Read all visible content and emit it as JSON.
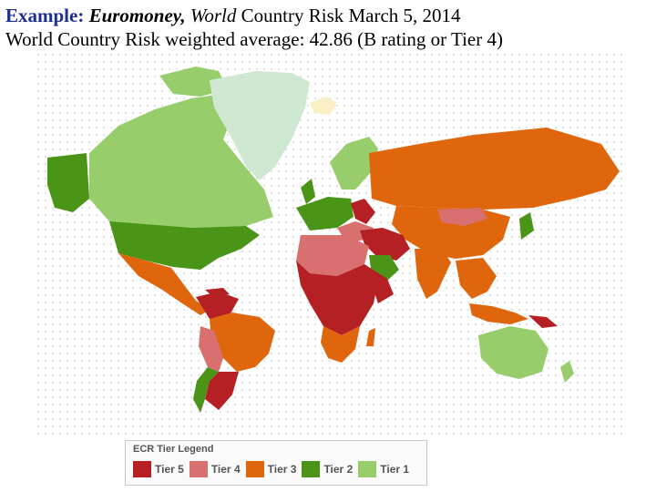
{
  "caption": {
    "lead": "Example:",
    "source": "Euromoney,",
    "world_italic": "World",
    "title_rest": "Country Risk March 5, 2014",
    "subtitle": "World Country Risk weighted average: 42.86 (B rating or Tier 4)"
  },
  "legend": {
    "title": "ECR Tier Legend",
    "items": [
      {
        "label": "Tier 5",
        "color": "#b52025"
      },
      {
        "label": "Tier 4",
        "color": "#d97070"
      },
      {
        "label": "Tier 3",
        "color": "#e0660e"
      },
      {
        "label": "Tier 2",
        "color": "#4a9418"
      },
      {
        "label": "Tier 1",
        "color": "#97cd6a"
      }
    ]
  },
  "colors": {
    "tier5": "#b52025",
    "tier4": "#d97070",
    "tier3": "#e0660e",
    "tier2": "#4a9418",
    "tier1": "#97cd6a",
    "greenland": "#cfe8d2",
    "iceland": "#fbefc6",
    "grid_dot": "#d9d9d9"
  }
}
